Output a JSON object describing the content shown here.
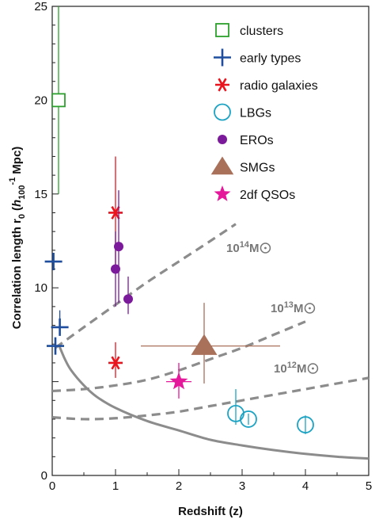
{
  "chart_data": {
    "type": "scatter",
    "xlabel": "Redshift (z)",
    "ylabel": "Correlation length r",
    "ylabel_sub": "0",
    "ylabel_paren_open": "(",
    "ylabel_h": "h",
    "ylabel_h_sub": "100",
    "ylabel_h_sup": "-1",
    "ylabel_unit": "Mpc)",
    "xlim": [
      0,
      5
    ],
    "ylim": [
      0,
      25
    ],
    "xticks": [
      0,
      1,
      2,
      3,
      4,
      5
    ],
    "yticks": [
      0,
      5,
      10,
      15,
      20,
      25
    ],
    "ytick_labels": [
      "0",
      "",
      "10",
      "15",
      "20",
      "25"
    ],
    "grid": false,
    "legend_position": "top-right",
    "series": [
      {
        "name": "clusters",
        "marker": "open-square",
        "color": "#2ca02c",
        "points": [
          {
            "x": 0.1,
            "y": 20.0,
            "yerr_lo": 5.0,
            "yerr_hi": 5.0
          }
        ]
      },
      {
        "name": "early types",
        "marker": "plus",
        "color": "#1f4e9e",
        "points": [
          {
            "x": 0.02,
            "y": 11.4
          },
          {
            "x": 0.12,
            "y": 7.9,
            "yerr_lo": 0.4,
            "yerr_hi": 0.9
          },
          {
            "x": 0.05,
            "y": 6.9
          }
        ]
      },
      {
        "name": "radio galaxies",
        "marker": "asterisk",
        "color": "#e8141e",
        "points": [
          {
            "x": 1.0,
            "y": 14.0,
            "yerr_lo": 3.0,
            "yerr_hi": 3.0
          },
          {
            "x": 1.0,
            "y": 6.0,
            "yerr_lo": 0.8,
            "yerr_hi": 1.1
          }
        ]
      },
      {
        "name": "LBGs",
        "marker": "open-circle",
        "color": "#1ca3c4",
        "points": [
          {
            "x": 2.9,
            "y": 3.3,
            "yerr_lo": 0.6,
            "yerr_hi": 1.3
          },
          {
            "x": 3.1,
            "y": 3.0,
            "yerr_lo": 0.3,
            "yerr_hi": 0.3
          },
          {
            "x": 4.0,
            "y": 2.7,
            "yerr_lo": 0.5,
            "yerr_hi": 0.5
          }
        ]
      },
      {
        "name": "EROs",
        "marker": "filled-circle",
        "color": "#7b1a9a",
        "points": [
          {
            "x": 1.05,
            "y": 12.2,
            "yerr_lo": 3.0,
            "yerr_hi": 3.0
          },
          {
            "x": 1.0,
            "y": 11.0,
            "yerr_lo": 2.0,
            "yerr_hi": 2.0
          },
          {
            "x": 1.2,
            "y": 9.4,
            "yerr_lo": 0.8,
            "yerr_hi": 1.2
          }
        ]
      },
      {
        "name": "SMGs",
        "marker": "filled-triangle",
        "color": "#a9705a",
        "points": [
          {
            "x": 2.4,
            "y": 6.9,
            "yerr_lo": 2.0,
            "yerr_hi": 2.3,
            "xerr_lo": 1.0,
            "xerr_hi": 1.2
          }
        ]
      },
      {
        "name": "2df QSOs",
        "marker": "star",
        "color": "#e5179b",
        "points": [
          {
            "x": 2.0,
            "y": 5.0,
            "yerr_lo": 0.9,
            "yerr_hi": 1.0,
            "xerr_lo": 0.2,
            "xerr_hi": 0.2
          }
        ]
      }
    ],
    "mass_curves": [
      {
        "label_base": "10",
        "label_exp": "14",
        "label_unit": "M",
        "color": "#8c8c8c",
        "x": [
          0.05,
          0.5,
          1.0,
          1.5,
          2.0,
          2.5,
          2.9
        ],
        "y": [
          6.8,
          7.9,
          9.1,
          10.3,
          11.4,
          12.5,
          13.4
        ]
      },
      {
        "label_base": "10",
        "label_exp": "13",
        "label_unit": "M",
        "color": "#8c8c8c",
        "x": [
          0.0,
          0.5,
          1.0,
          1.5,
          2.0,
          2.5,
          3.0,
          3.5,
          4.0
        ],
        "y": [
          4.5,
          4.6,
          4.8,
          5.1,
          5.6,
          6.2,
          6.8,
          7.5,
          8.2
        ]
      },
      {
        "label_base": "10",
        "label_exp": "12",
        "label_unit": "M",
        "color": "#8c8c8c",
        "x": [
          0.0,
          0.5,
          1.0,
          1.5,
          2.0,
          2.5,
          3.0,
          3.5,
          4.0,
          4.5,
          5.0
        ],
        "y": [
          3.1,
          3.0,
          3.05,
          3.2,
          3.4,
          3.7,
          4.0,
          4.3,
          4.6,
          4.9,
          5.2
        ]
      }
    ],
    "solid_curve": {
      "color": "#8c8c8c",
      "x": [
        0.1,
        0.2,
        0.3,
        0.5,
        0.7,
        1.0,
        1.5,
        2.0,
        2.5,
        3.0,
        3.5,
        4.0,
        4.5,
        5.0
      ],
      "y": [
        7.0,
        6.2,
        5.6,
        4.8,
        4.2,
        3.6,
        2.9,
        2.4,
        1.9,
        1.6,
        1.35,
        1.15,
        1.0,
        0.9
      ]
    }
  }
}
